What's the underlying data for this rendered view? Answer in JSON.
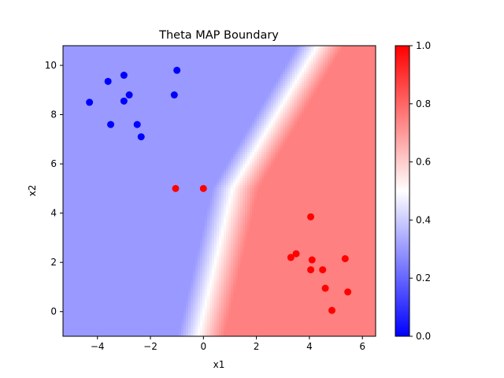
{
  "chart_data": {
    "type": "scatter",
    "title": "Theta MAP Boundary",
    "xlabel": "x1",
    "ylabel": "x2",
    "xlim": [
      -5.3,
      6.5
    ],
    "ylim": [
      -1.0,
      10.8
    ],
    "xticks": [
      -4,
      -2,
      0,
      2,
      4,
      6
    ],
    "yticks": [
      0,
      2,
      4,
      6,
      8,
      10
    ],
    "grid": false,
    "legend": "none",
    "background": "filled-contour",
    "colormap": "bwr",
    "colorbar": {
      "range": [
        0.0,
        1.0
      ],
      "ticks": [
        0.0,
        0.2,
        0.4,
        0.6,
        0.8,
        1.0
      ],
      "tick_labels": [
        "0.0",
        "0.2",
        "0.4",
        "0.6",
        "0.8",
        "1.0"
      ],
      "placement": "right"
    },
    "series": [
      {
        "color": "#0000ff",
        "points": [
          [
            -4.3,
            8.5
          ],
          [
            -3.6,
            9.35
          ],
          [
            -3.0,
            9.6
          ],
          [
            -1.0,
            9.8
          ],
          [
            -2.8,
            8.8
          ],
          [
            -3.0,
            8.55
          ],
          [
            -1.1,
            8.8
          ],
          [
            -3.5,
            7.6
          ],
          [
            -2.5,
            7.6
          ],
          [
            -2.35,
            7.1
          ]
        ]
      },
      {
        "color": "#ff0000",
        "points": [
          [
            -1.05,
            5.0
          ],
          [
            0.0,
            5.0
          ],
          [
            4.05,
            3.85
          ],
          [
            3.5,
            2.35
          ],
          [
            3.3,
            2.2
          ],
          [
            4.1,
            2.1
          ],
          [
            5.35,
            2.15
          ],
          [
            4.05,
            1.7
          ],
          [
            4.5,
            1.7
          ],
          [
            4.6,
            0.95
          ],
          [
            5.45,
            0.8
          ],
          [
            4.85,
            0.05
          ]
        ]
      }
    ],
    "boundary_colors": {
      "low": "#0000ff",
      "mid": "#ffffff",
      "high": "#ff0000"
    }
  }
}
